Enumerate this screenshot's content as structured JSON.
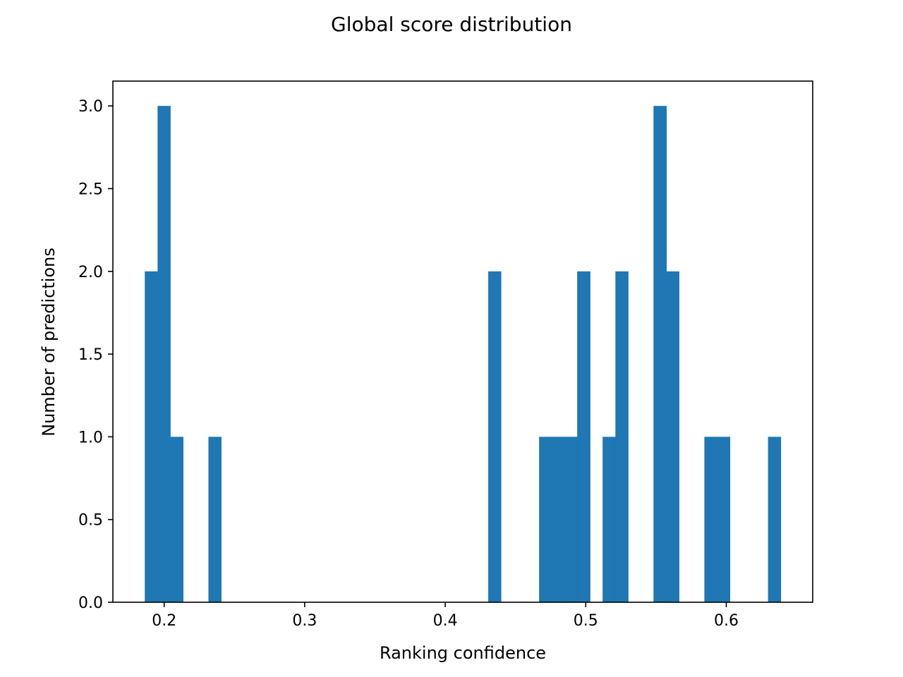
{
  "chart_data": {
    "type": "bar",
    "title": "Global score distribution",
    "xlabel": "Ranking confidence",
    "ylabel": "Number of predictions",
    "xlim": [
      0.1635,
      0.6615
    ],
    "ylim": [
      0,
      3.15
    ],
    "grid": false,
    "bar_color": "#1f77b4",
    "bin_edges": [
      0.1862,
      0.1953,
      0.2043,
      0.2134,
      0.2224,
      0.2315,
      0.2405,
      0.2496,
      0.2586,
      0.2677,
      0.2767,
      0.2858,
      0.2948,
      0.3039,
      0.3129,
      0.322,
      0.331,
      0.3401,
      0.3491,
      0.3582,
      0.3672,
      0.3763,
      0.3853,
      0.3944,
      0.4034,
      0.4125,
      0.4215,
      0.4306,
      0.4396,
      0.4487,
      0.4577,
      0.4668,
      0.4758,
      0.4849,
      0.4939,
      0.503,
      0.512,
      0.5211,
      0.5301,
      0.5392,
      0.5482,
      0.5573,
      0.5663,
      0.5754,
      0.5844,
      0.5935,
      0.6025,
      0.6116,
      0.6206,
      0.6297,
      0.6387
    ],
    "counts": [
      2,
      3,
      1,
      0,
      0,
      1,
      0,
      0,
      0,
      0,
      0,
      0,
      0,
      0,
      0,
      0,
      0,
      0,
      0,
      0,
      0,
      0,
      0,
      0,
      0,
      0,
      0,
      2,
      0,
      0,
      0,
      1,
      1,
      1,
      2,
      0,
      1,
      2,
      0,
      0,
      3,
      2,
      0,
      0,
      1,
      1,
      0,
      0,
      0,
      1
    ],
    "x_ticks": [
      {
        "value": 0.2,
        "label": "0.2"
      },
      {
        "value": 0.3,
        "label": "0.3"
      },
      {
        "value": 0.4,
        "label": "0.4"
      },
      {
        "value": 0.5,
        "label": "0.5"
      },
      {
        "value": 0.6,
        "label": "0.6"
      }
    ],
    "y_ticks": [
      {
        "value": 0.0,
        "label": "0.0"
      },
      {
        "value": 0.5,
        "label": "0.5"
      },
      {
        "value": 1.0,
        "label": "1.0"
      },
      {
        "value": 1.5,
        "label": "1.5"
      },
      {
        "value": 2.0,
        "label": "2.0"
      },
      {
        "value": 2.5,
        "label": "2.5"
      },
      {
        "value": 3.0,
        "label": "3.0"
      }
    ]
  }
}
